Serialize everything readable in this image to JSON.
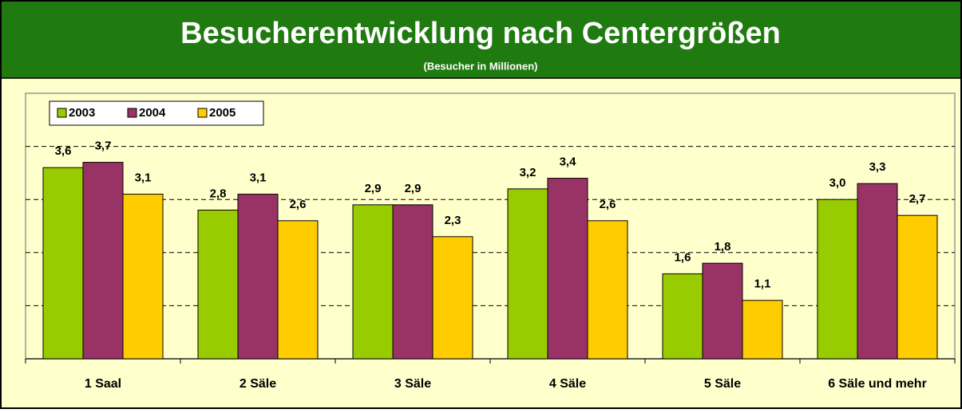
{
  "chart_data": {
    "type": "bar",
    "title": "Besucherentwicklung nach Centergrößen",
    "subtitle": "(Besucher in Millionen)",
    "categories": [
      "1 Saal",
      "2 Säle",
      "3 Säle",
      "4 Säle",
      "5 Säle",
      "6 Säle und mehr"
    ],
    "series": [
      {
        "name": "2003",
        "color": "#99cc00",
        "values": [
          3.6,
          2.8,
          2.9,
          3.2,
          1.6,
          3.0
        ],
        "value_labels": [
          "3,6",
          "2,8",
          "2,9",
          "3,2",
          "1,6",
          "3,0"
        ]
      },
      {
        "name": "2004",
        "color": "#993366",
        "values": [
          3.7,
          3.1,
          2.9,
          3.4,
          1.8,
          3.3
        ],
        "value_labels": [
          "3,7",
          "3,1",
          "2,9",
          "3,4",
          "1,8",
          "3,3"
        ]
      },
      {
        "name": "2005",
        "color": "#ffcc00",
        "values": [
          3.1,
          2.6,
          2.3,
          2.6,
          1.1,
          2.7
        ],
        "value_labels": [
          "3,1",
          "2,6",
          "2,3",
          "2,6",
          "1,1",
          "2,7"
        ]
      }
    ],
    "ylim": [
      0,
      5
    ],
    "yticks": [
      0,
      1,
      2,
      3,
      4
    ],
    "grid": true,
    "legend": "top-left"
  }
}
